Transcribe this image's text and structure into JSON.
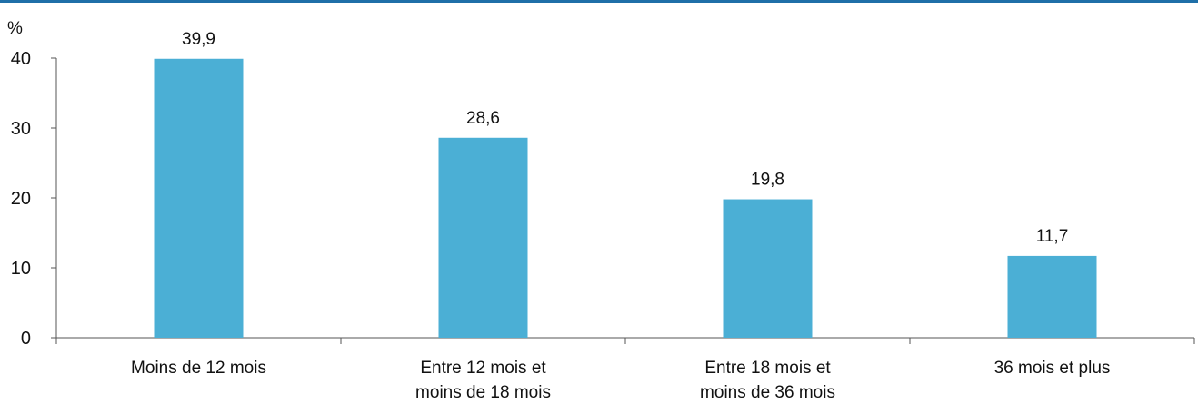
{
  "chart_data": {
    "type": "bar",
    "unit": "%",
    "categories": [
      [
        "Moins de 12 mois"
      ],
      [
        "Entre 12 mois et",
        "moins de 18 mois"
      ],
      [
        "Entre 18 mois et",
        "moins de 36 mois"
      ],
      [
        "36 mois et plus"
      ]
    ],
    "values": [
      39.9,
      28.6,
      19.8,
      11.7
    ],
    "value_labels": [
      "39,9",
      "28,6",
      "19,8",
      "11,7"
    ],
    "y_ticks": [
      "0",
      "10",
      "20",
      "30",
      "40"
    ],
    "ylim": [
      0,
      40
    ],
    "bar_color": "#4bafd5",
    "top_rule_color": "#1f6fa8",
    "grid": false
  }
}
